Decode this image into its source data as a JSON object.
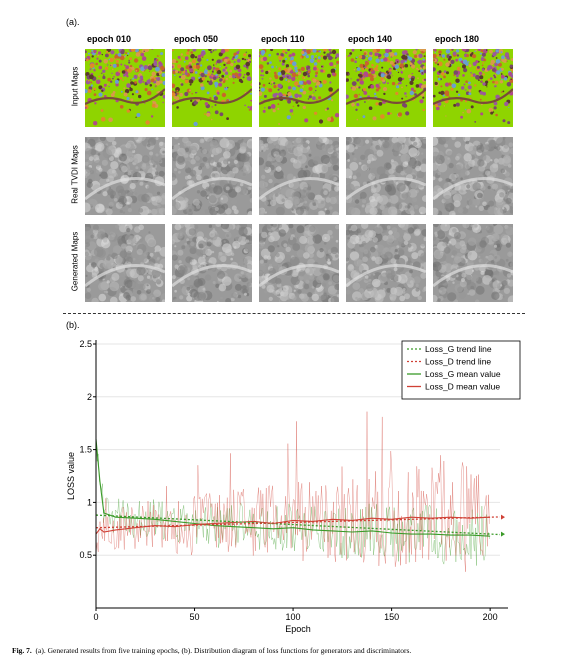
{
  "panel_a": {
    "label": "(a).",
    "epochs": [
      "epoch 010",
      "epoch 050",
      "epoch 110",
      "epoch 140",
      "epoch 180"
    ],
    "rows": [
      "Input Maps",
      "Real TVDI Maps",
      "Generated Maps"
    ]
  },
  "panel_b": {
    "label": "(b)."
  },
  "caption": {
    "prefix": "Fig. 7.",
    "text": "(a). Generated results from five training epochs, (b). Distribution diagram of loss functions for generators and discriminators."
  },
  "colors": {
    "loss_g": "#3a9a28",
    "loss_d": "#d04035",
    "tile_green": "#8fd400"
  },
  "chart_data": {
    "type": "line",
    "xlabel": "Epoch",
    "ylabel": "LOSS value",
    "xlim": [
      0,
      205
    ],
    "ylim": [
      0,
      2.5
    ],
    "xticks": [
      0,
      50,
      100,
      150,
      200
    ],
    "yticks": [
      0.5,
      1,
      1.5,
      2,
      2.5
    ],
    "ytick_labels": [
      "0.5",
      "1",
      "1.5",
      "2",
      "2.5"
    ],
    "grid": "horizontal",
    "legend_position": "top-right",
    "legend": [
      "Loss_G  trend line",
      "Loss_D  trend line",
      "Loss_G  mean value",
      "Loss_D  mean value"
    ],
    "series": [
      {
        "name": "Loss_G  trend line",
        "style": "dotted",
        "color": "#3a9a28",
        "x": [
          0,
          200
        ],
        "y": [
          0.88,
          0.7
        ]
      },
      {
        "name": "Loss_D  trend line",
        "style": "dotted",
        "color": "#d04035",
        "x": [
          0,
          200
        ],
        "y": [
          0.76,
          0.86
        ]
      },
      {
        "name": "Loss_G  mean value",
        "style": "solid",
        "color": "#3a9a28",
        "x": [
          0,
          2,
          4,
          10,
          20,
          30,
          40,
          50,
          60,
          70,
          80,
          90,
          100,
          110,
          120,
          130,
          140,
          150,
          160,
          170,
          180,
          190,
          200
        ],
        "y": [
          1.6,
          1.2,
          0.9,
          0.86,
          0.85,
          0.84,
          0.82,
          0.8,
          0.78,
          0.77,
          0.76,
          0.75,
          0.76,
          0.74,
          0.73,
          0.72,
          0.73,
          0.71,
          0.7,
          0.7,
          0.69,
          0.69,
          0.68
        ]
      },
      {
        "name": "Loss_D  mean value",
        "style": "solid",
        "color": "#d04035",
        "x": [
          0,
          2,
          4,
          10,
          20,
          30,
          40,
          50,
          60,
          70,
          80,
          90,
          100,
          110,
          120,
          130,
          140,
          150,
          160,
          170,
          180,
          190,
          200
        ],
        "y": [
          0.7,
          0.75,
          0.72,
          0.74,
          0.76,
          0.78,
          0.77,
          0.79,
          0.8,
          0.81,
          0.82,
          0.8,
          0.83,
          0.82,
          0.84,
          0.83,
          0.85,
          0.84,
          0.86,
          0.85,
          0.86,
          0.85,
          0.86
        ]
      }
    ]
  }
}
